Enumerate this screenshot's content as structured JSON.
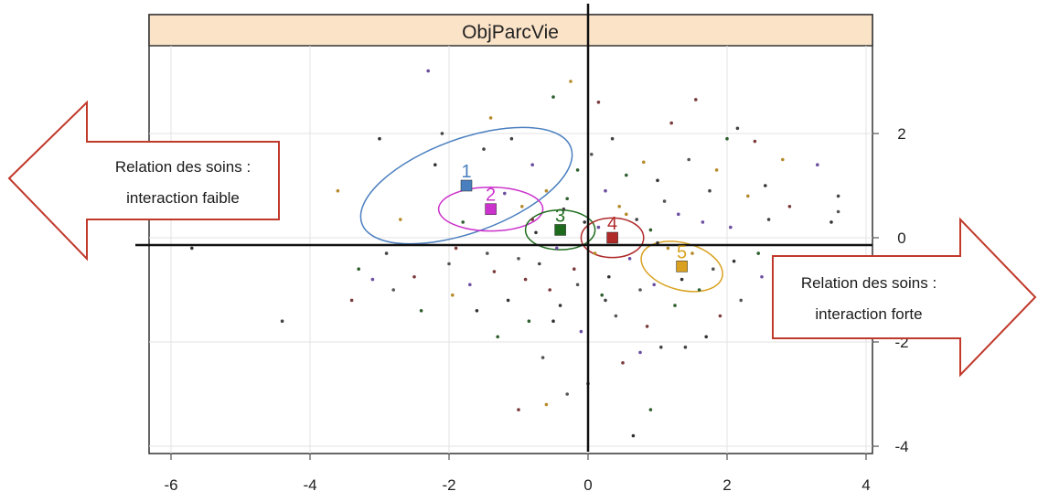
{
  "chart_data": {
    "type": "scatter",
    "title": "ObjParcVie",
    "xlim": [
      -6.3,
      4.3
    ],
    "ylim": [
      -4.3,
      3.1
    ],
    "x_ticks": [
      "-6",
      "-4",
      "-2",
      "0",
      "2",
      "4"
    ],
    "y_ticks": [
      "-4",
      "-2",
      "0",
      "2"
    ],
    "grid": true,
    "strip_color": "#fbe3c8",
    "groups": [
      {
        "label": "1",
        "color": "#4a7fbf",
        "center": [
          -1.75,
          1.0
        ],
        "ellipse": {
          "rx": 1.6,
          "ry": 0.9,
          "angle": 20
        }
      },
      {
        "label": "2",
        "color": "#cc33cc",
        "center": [
          -1.4,
          0.55
        ],
        "ellipse": {
          "rx": 0.75,
          "ry": 0.42,
          "angle": 0
        }
      },
      {
        "label": "3",
        "color": "#1e6b1e",
        "center": [
          -0.4,
          0.15
        ],
        "ellipse": {
          "rx": 0.5,
          "ry": 0.38,
          "angle": 0
        }
      },
      {
        "label": "4",
        "color": "#b02a2a",
        "center": [
          0.35,
          0.0
        ],
        "ellipse": {
          "rx": 0.45,
          "ry": 0.38,
          "angle": 0
        }
      },
      {
        "label": "5",
        "color": "#d9a11f",
        "center": [
          1.35,
          -0.55
        ],
        "ellipse": {
          "rx": 0.6,
          "ry": 0.45,
          "angle": -15
        }
      }
    ],
    "points": [
      [
        -5.7,
        -0.2
      ],
      [
        -4.4,
        -1.6
      ],
      [
        -4.6,
        1.65
      ],
      [
        -3.6,
        0.9
      ],
      [
        -3.4,
        -1.2
      ],
      [
        -3.3,
        -0.6
      ],
      [
        -3.1,
        -0.8
      ],
      [
        -3.0,
        1.9
      ],
      [
        -2.9,
        -0.3
      ],
      [
        -2.8,
        -1.0
      ],
      [
        -2.7,
        0.35
      ],
      [
        -2.5,
        -0.75
      ],
      [
        -2.4,
        -1.4
      ],
      [
        -2.3,
        3.2
      ],
      [
        -2.2,
        1.4
      ],
      [
        -2.1,
        2.0
      ],
      [
        -2.0,
        -0.5
      ],
      [
        -1.95,
        -1.1
      ],
      [
        -1.9,
        -0.2
      ],
      [
        -1.8,
        0.3
      ],
      [
        -1.7,
        -0.9
      ],
      [
        -1.6,
        -1.4
      ],
      [
        -1.5,
        1.7
      ],
      [
        -1.45,
        -0.3
      ],
      [
        -1.4,
        2.3
      ],
      [
        -1.35,
        -0.65
      ],
      [
        -1.3,
        -1.9
      ],
      [
        -1.2,
        0.85
      ],
      [
        -1.15,
        -1.2
      ],
      [
        -1.1,
        1.9
      ],
      [
        -1.0,
        -0.4
      ],
      [
        -0.95,
        0.6
      ],
      [
        -0.9,
        -0.8
      ],
      [
        -0.85,
        -1.6
      ],
      [
        -0.8,
        1.4
      ],
      [
        -0.75,
        0.1
      ],
      [
        -0.7,
        -0.5
      ],
      [
        -0.65,
        -2.3
      ],
      [
        -0.6,
        0.9
      ],
      [
        -0.55,
        -1.0
      ],
      [
        -0.5,
        2.7
      ],
      [
        -0.45,
        -0.2
      ],
      [
        -0.4,
        -1.3
      ],
      [
        -0.35,
        0.55
      ],
      [
        -0.3,
        -3.0
      ],
      [
        -0.25,
        3.0
      ],
      [
        -0.2,
        -0.6
      ],
      [
        -0.15,
        1.3
      ],
      [
        -0.1,
        -1.8
      ],
      [
        -0.05,
        0.3
      ],
      [
        0.0,
        -2.8
      ],
      [
        0.05,
        1.6
      ],
      [
        0.1,
        -0.3
      ],
      [
        0.15,
        2.6
      ],
      [
        0.2,
        -1.1
      ],
      [
        0.25,
        0.9
      ],
      [
        0.3,
        -0.75
      ],
      [
        0.35,
        1.9
      ],
      [
        0.4,
        -1.5
      ],
      [
        0.45,
        0.6
      ],
      [
        0.5,
        -2.4
      ],
      [
        0.55,
        1.2
      ],
      [
        0.6,
        -0.4
      ],
      [
        0.65,
        -3.8
      ],
      [
        0.7,
        0.35
      ],
      [
        0.75,
        -1.0
      ],
      [
        0.8,
        1.45
      ],
      [
        0.85,
        -1.7
      ],
      [
        0.9,
        0.15
      ],
      [
        0.95,
        -0.9
      ],
      [
        1.0,
        1.1
      ],
      [
        1.05,
        -2.1
      ],
      [
        1.1,
        0.7
      ],
      [
        1.15,
        -0.2
      ],
      [
        1.2,
        2.2
      ],
      [
        1.25,
        -1.3
      ],
      [
        1.3,
        0.45
      ],
      [
        1.35,
        -0.8
      ],
      [
        1.4,
        -2.1
      ],
      [
        1.45,
        1.5
      ],
      [
        1.5,
        -0.3
      ],
      [
        1.55,
        2.65
      ],
      [
        1.6,
        -1.0
      ],
      [
        1.65,
        0.3
      ],
      [
        1.7,
        -1.9
      ],
      [
        1.75,
        0.9
      ],
      [
        1.8,
        -0.6
      ],
      [
        1.85,
        1.3
      ],
      [
        1.9,
        -1.5
      ],
      [
        2.0,
        1.9
      ],
      [
        2.05,
        0.2
      ],
      [
        2.1,
        -0.45
      ],
      [
        2.15,
        2.1
      ],
      [
        2.2,
        -1.2
      ],
      [
        2.3,
        0.8
      ],
      [
        2.4,
        1.85
      ],
      [
        2.45,
        -0.3
      ],
      [
        2.5,
        -0.75
      ],
      [
        2.55,
        1.0
      ],
      [
        2.6,
        0.35
      ],
      [
        2.7,
        -1.0
      ],
      [
        2.8,
        1.5
      ],
      [
        2.9,
        0.6
      ],
      [
        3.0,
        -0.4
      ],
      [
        3.3,
        1.4
      ],
      [
        3.5,
        0.3
      ],
      [
        3.6,
        0.8
      ],
      [
        3.6,
        0.5
      ],
      [
        -0.6,
        -3.2
      ],
      [
        -1.0,
        -3.3
      ],
      [
        0.9,
        -3.3
      ],
      [
        0.75,
        -2.2
      ],
      [
        -0.5,
        -1.6
      ],
      [
        0.25,
        -1.2
      ],
      [
        -0.15,
        -0.9
      ],
      [
        0.55,
        0.45
      ],
      [
        -0.8,
        0.35
      ],
      [
        -0.3,
        0.75
      ],
      [
        0.15,
        0.2
      ],
      [
        1.0,
        -0.1
      ]
    ]
  }
}
